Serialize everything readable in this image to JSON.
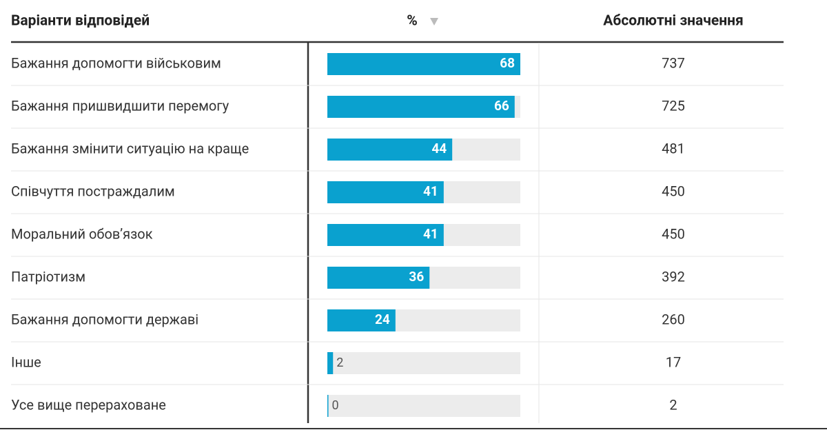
{
  "table": {
    "columns": [
      "Варіанти відповідей",
      "%",
      "Абсолютні значення"
    ],
    "rows": [
      [
        "Бажання допомогти військовим",
        68,
        737
      ],
      [
        "Бажання пришвидшити перемогу",
        66,
        725
      ],
      [
        "Бажання змінити ситуацію на краще",
        44,
        481
      ],
      [
        "Співчуття постраждалим",
        41,
        450
      ],
      [
        "Моральний обов’язок",
        41,
        450
      ],
      [
        "Патріотизм",
        36,
        392
      ],
      [
        "Бажання допомогти державі",
        24,
        260
      ],
      [
        "Інше",
        2,
        17
      ],
      [
        "Усе вище перераховане",
        0,
        2
      ]
    ]
  }
}
